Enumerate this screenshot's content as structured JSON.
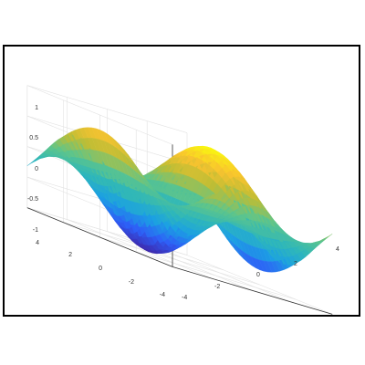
{
  "chart_data": {
    "type": "surface",
    "title": "",
    "xlabel": "",
    "ylabel": "",
    "zlabel": "",
    "x_range": [
      -4,
      4
    ],
    "y_range": [
      -4,
      4
    ],
    "z_range": [
      -1,
      1
    ],
    "z_ticks": [
      "1",
      "0.5",
      "0",
      "-0.5",
      "-1"
    ],
    "x_ticks": [
      "-4",
      "-2",
      "0",
      "2",
      "4"
    ],
    "y_ticks": [
      "4",
      "2",
      "0",
      "-2",
      "-4"
    ],
    "grid": true,
    "box": "3d-axes",
    "surface_function": "z = sin(x) * cos(y / 2)",
    "colormap": "parula",
    "colormap_stops": [
      "#3e26a8",
      "#2e5ef7",
      "#1ba0e3",
      "#2fb7b9",
      "#5ec58b",
      "#bdbd35",
      "#f9c32f",
      "#f9fb0e"
    ],
    "surface_edge_color": "#ffffff",
    "grid_color": "#e2e2e2",
    "axis_color": "#333333",
    "border_color": "#000000"
  }
}
